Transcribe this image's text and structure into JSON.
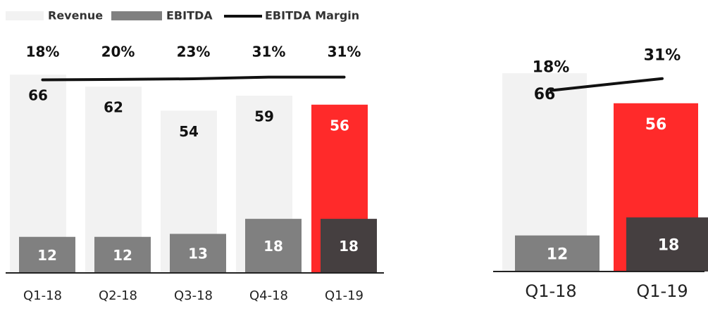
{
  "chart_data": [
    {
      "type": "bar",
      "categories": [
        "Q1-18",
        "Q2-18",
        "Q3-18",
        "Q4-18",
        "Q1-19"
      ],
      "ylim": [
        0,
        70
      ],
      "y2lim": [
        -900,
        100
      ],
      "series": [
        {
          "name": "Revenue",
          "color": "#f2f2f2",
          "colors": [
            "#f2f2f2",
            "#f2f2f2",
            "#f2f2f2",
            "#f2f2f2",
            "#ff2a2a"
          ],
          "values": [
            66,
            62,
            54,
            59,
            56
          ]
        },
        {
          "name": "EBITDA",
          "color": "#808080",
          "colors": [
            "#808080",
            "#808080",
            "#808080",
            "#808080",
            "#453f40"
          ],
          "values": [
            12,
            12,
            13,
            18,
            18
          ]
        },
        {
          "name": "EBITDA Margin",
          "color": "#111111",
          "type": "line",
          "axis": "y2",
          "values": [
            18,
            20,
            23,
            31,
            31
          ],
          "value_labels": [
            "18%",
            "20%",
            "23%",
            "31%",
            "31%"
          ]
        }
      ]
    },
    {
      "type": "bar",
      "categories": [
        "Q1-18",
        "Q1-19"
      ],
      "ylim": [
        0,
        70
      ],
      "y2lim": [
        -180,
        50
      ],
      "series": [
        {
          "colors": [
            "#f2f2f2",
            "#ff2a2a"
          ],
          "values": [
            66,
            56
          ]
        },
        {
          "colors": [
            "#808080",
            "#453f40"
          ],
          "values": [
            12,
            18
          ]
        },
        {
          "color": "#111111",
          "type": "line",
          "axis": "y2",
          "values": [
            18,
            31
          ],
          "value_labels": [
            "18%",
            "31%"
          ]
        }
      ]
    }
  ]
}
